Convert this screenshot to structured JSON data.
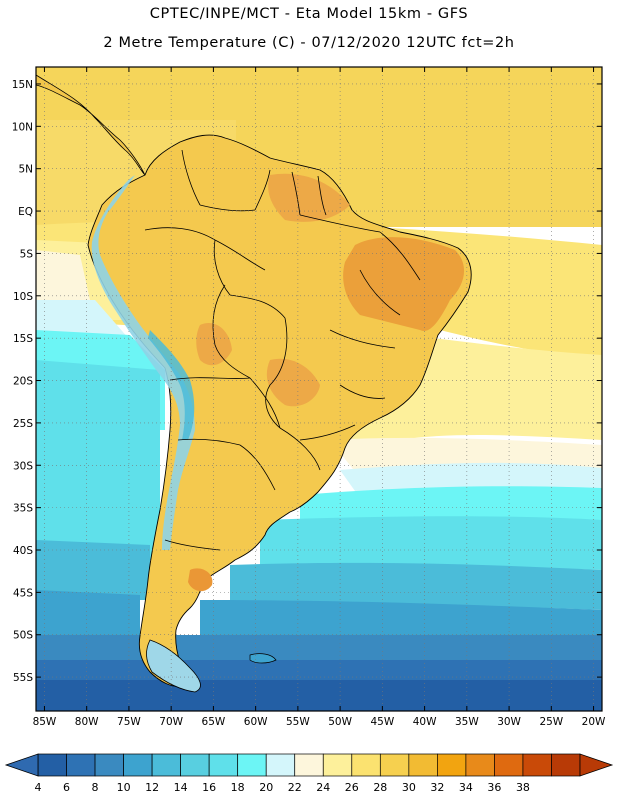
{
  "header": {
    "line1": "CPTEC/INPE/MCT -  Eta Model 15km - GFS",
    "line2": "2 Metre Temperature (C) - 07/12/2020 12UTC fct=2h"
  },
  "map": {
    "lon_range": [
      -86,
      -19
    ],
    "lat_range": [
      -59,
      17
    ],
    "lat_ticks": [
      {
        "value": 15,
        "label": "15N"
      },
      {
        "value": 10,
        "label": "10N"
      },
      {
        "value": 5,
        "label": "5N"
      },
      {
        "value": 0,
        "label": "EQ"
      },
      {
        "value": -5,
        "label": "5S"
      },
      {
        "value": -10,
        "label": "10S"
      },
      {
        "value": -15,
        "label": "15S"
      },
      {
        "value": -20,
        "label": "20S"
      },
      {
        "value": -25,
        "label": "25S"
      },
      {
        "value": -30,
        "label": "30S"
      },
      {
        "value": -35,
        "label": "35S"
      },
      {
        "value": -40,
        "label": "40S"
      },
      {
        "value": -45,
        "label": "45S"
      },
      {
        "value": -50,
        "label": "50S"
      },
      {
        "value": -55,
        "label": "55S"
      }
    ],
    "lon_ticks": [
      {
        "value": -85,
        "label": "85W"
      },
      {
        "value": -80,
        "label": "80W"
      },
      {
        "value": -75,
        "label": "75W"
      },
      {
        "value": -70,
        "label": "70W"
      },
      {
        "value": -65,
        "label": "65W"
      },
      {
        "value": -60,
        "label": "60W"
      },
      {
        "value": -55,
        "label": "55W"
      },
      {
        "value": -50,
        "label": "50W"
      },
      {
        "value": -45,
        "label": "45W"
      },
      {
        "value": -40,
        "label": "40W"
      },
      {
        "value": -35,
        "label": "35W"
      },
      {
        "value": -30,
        "label": "30W"
      },
      {
        "value": -25,
        "label": "25W"
      },
      {
        "value": -20,
        "label": "20W"
      }
    ]
  },
  "colorbar": {
    "labels": [
      "4",
      "6",
      "8",
      "10",
      "12",
      "14",
      "16",
      "18",
      "20",
      "22",
      "24",
      "26",
      "28",
      "30",
      "32",
      "34",
      "36",
      "38"
    ],
    "colors": [
      "#235fa5",
      "#2e72b4",
      "#3a8ac0",
      "#3da3cf",
      "#4bbcd9",
      "#58cfe0",
      "#5fe0ea",
      "#6cf5f5",
      "#d4f6fb",
      "#fdf6dc",
      "#fdf09b",
      "#fbe270",
      "#f6d04f",
      "#f2bb33",
      "#f2a410",
      "#e88a1a",
      "#df6a10",
      "#c94a08",
      "#b83a06"
    ],
    "min_color": "#2f6ab0",
    "max_color": "#b83a06"
  }
}
